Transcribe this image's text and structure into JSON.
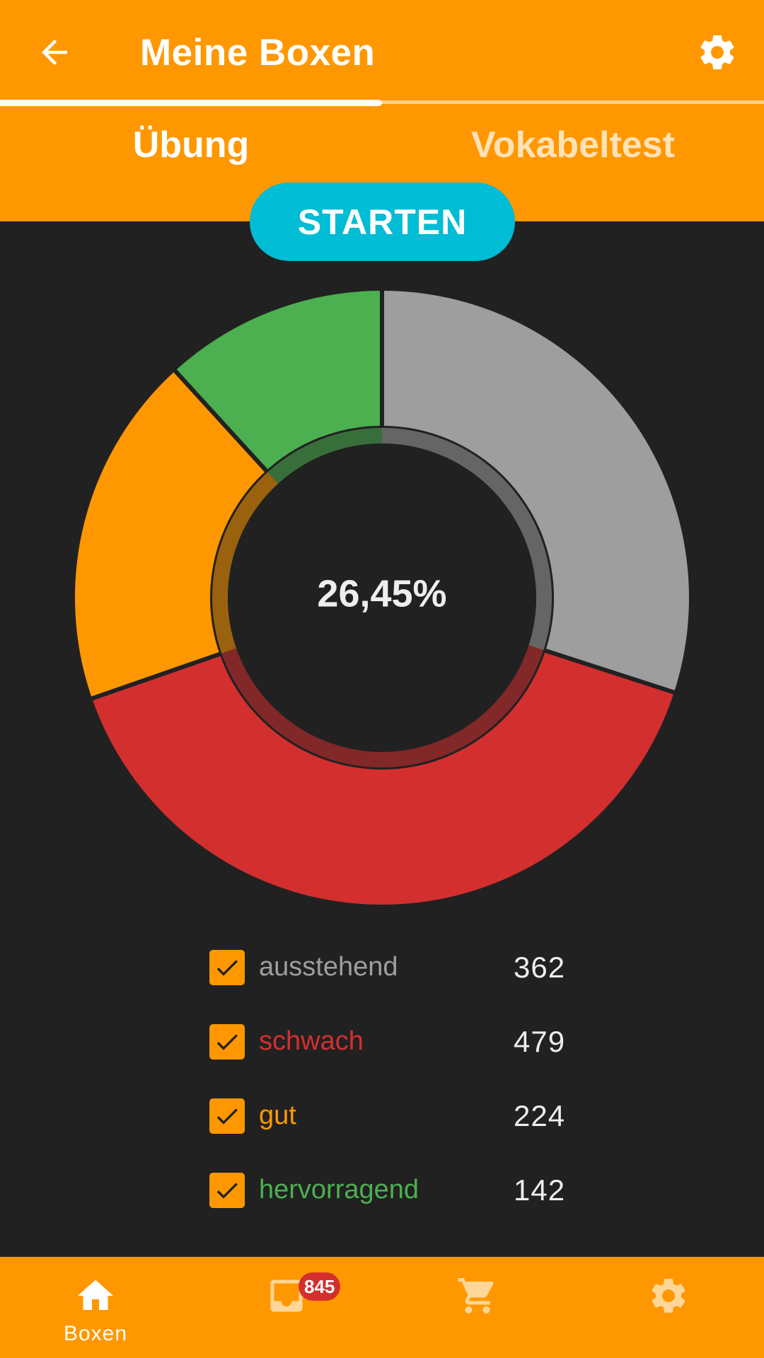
{
  "header": {
    "title": "Meine Boxen",
    "back_icon": "arrow-left-icon",
    "settings_icon": "gear-icon"
  },
  "tabs": [
    {
      "label": "Übung",
      "active": true
    },
    {
      "label": "Vokabeltest",
      "active": false
    }
  ],
  "start_button": {
    "label": "STARTEN"
  },
  "colors": {
    "primary": "#FF9800",
    "accent": "#00BCD4",
    "background": "#212121",
    "ausstehend": "#9E9E9E",
    "schwach": "#D32F2F",
    "gut": "#FF9800",
    "hervorragend": "#4CAF50"
  },
  "chart_data": {
    "type": "pie",
    "center_label": "26,45%",
    "categories": [
      "ausstehend",
      "schwach",
      "gut",
      "hervorragend"
    ],
    "values": [
      362,
      479,
      224,
      142
    ],
    "colors": [
      "#9E9E9E",
      "#D32F2F",
      "#FF9800",
      "#4CAF50"
    ]
  },
  "legend": [
    {
      "label": "ausstehend",
      "count": "362",
      "checked": true,
      "color": "#9E9E9E"
    },
    {
      "label": "schwach",
      "count": "479",
      "checked": true,
      "color": "#D32F2F"
    },
    {
      "label": "gut",
      "count": "224",
      "checked": true,
      "color": "#FF9800"
    },
    {
      "label": "hervorragend",
      "count": "142",
      "checked": true,
      "color": "#4CAF50"
    }
  ],
  "bottom_nav": [
    {
      "label": "Boxen",
      "icon": "home-icon"
    },
    {
      "label": "",
      "icon": "inbox-icon",
      "badge": "845"
    },
    {
      "label": "",
      "icon": "cart-icon"
    },
    {
      "label": "",
      "icon": "gear-icon"
    }
  ]
}
